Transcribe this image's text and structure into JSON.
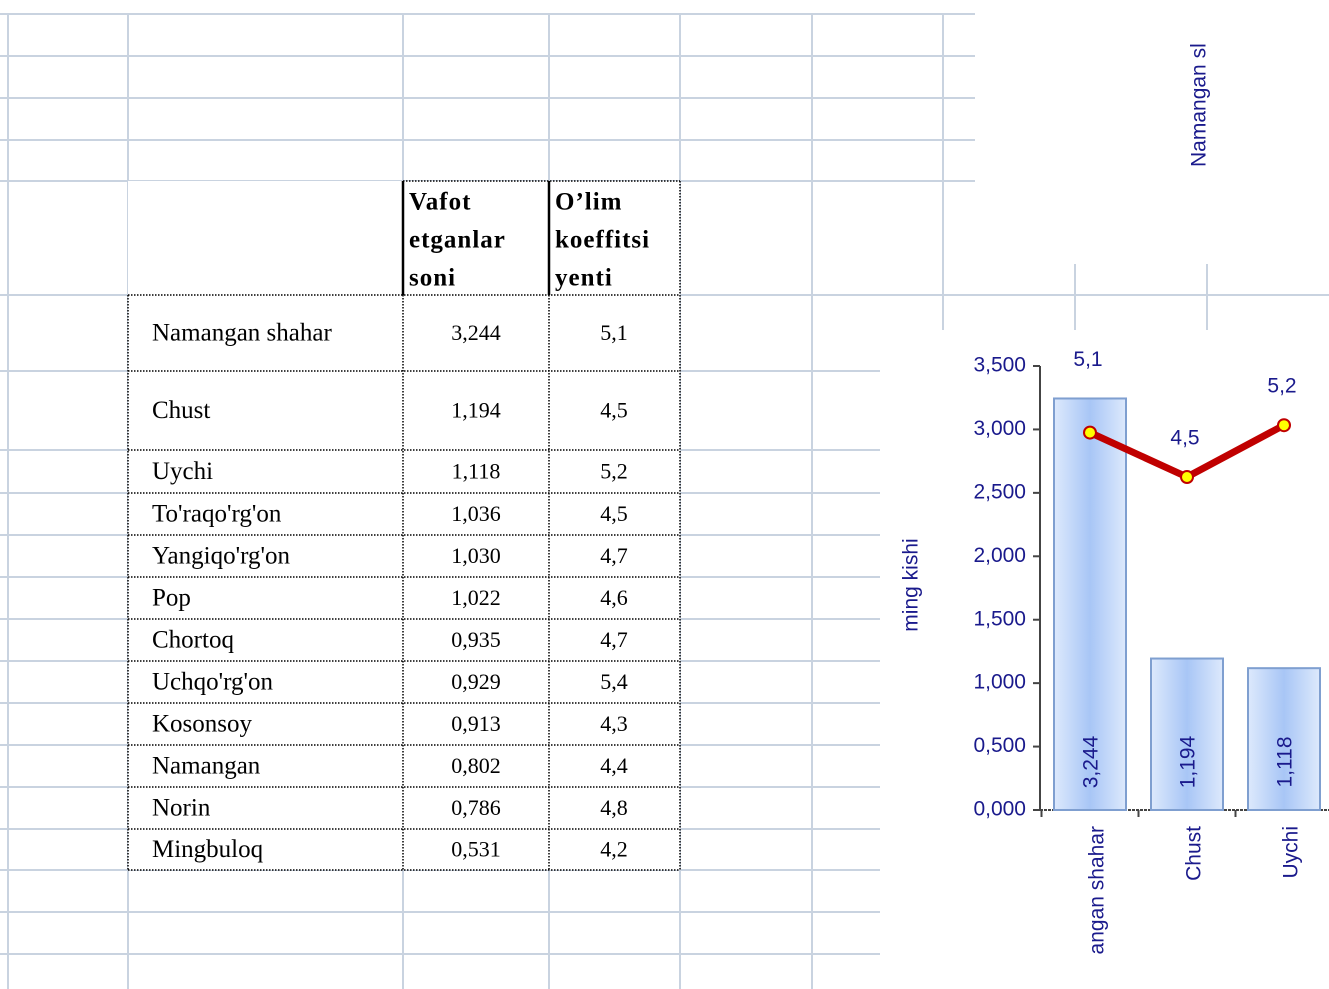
{
  "table": {
    "headers": [
      [
        "Vafot",
        "etganlar",
        "soni"
      ],
      [
        "O’lim",
        "koeffitsi",
        "yenti"
      ]
    ],
    "rows": [
      [
        "Namangan shahar",
        "3,244",
        "5,1"
      ],
      [
        "Chust",
        "1,194",
        "4,5"
      ],
      [
        "Uychi",
        "1,118",
        "5,2"
      ],
      [
        "To'raqo'rg'on",
        "1,036",
        "4,5"
      ],
      [
        "Yangiqo'rg'on",
        "1,030",
        "4,7"
      ],
      [
        "Pop",
        "1,022",
        "4,6"
      ],
      [
        "Chortoq",
        "0,935",
        "4,7"
      ],
      [
        "Uchqo'rg'on",
        "0,929",
        "5,4"
      ],
      [
        "Kosonsoy",
        "0,913",
        "4,3"
      ],
      [
        "Namangan",
        "0,802",
        "4,4"
      ],
      [
        "Norin",
        "0,786",
        "4,8"
      ],
      [
        "Mingbuloq",
        "0,531",
        "4,2"
      ]
    ]
  },
  "top_chart_label": "Namangan sl",
  "chart_data": {
    "type": "bar-line",
    "y_label": "ming kishi",
    "categories": [
      "angan shahar",
      "Chust",
      "Uychi"
    ],
    "series": [
      {
        "type": "bar",
        "color": "#a8c6f6",
        "values": [
          3.244,
          1.194,
          1.118
        ],
        "value_labels": [
          "3,244",
          "1,194",
          "1,118"
        ]
      },
      {
        "type": "line",
        "axis": "y2",
        "color": "#c00000",
        "values": [
          5.1,
          4.5,
          5.2
        ],
        "value_labels": [
          "5,1",
          "4,5",
          "5,2"
        ]
      }
    ],
    "ylim": [
      0,
      3.5
    ],
    "yticks": [
      {
        "value": 0,
        "label": "0,000"
      },
      {
        "value": 0.5,
        "label": "0,500"
      },
      {
        "value": 1,
        "label": "1,000"
      },
      {
        "value": 1.5,
        "label": "1,500"
      },
      {
        "value": 2,
        "label": "2,000"
      },
      {
        "value": 2.5,
        "label": "2,500"
      },
      {
        "value": 3,
        "label": "3,000"
      },
      {
        "value": 3.5,
        "label": "3,500"
      }
    ],
    "y2lim": [
      0,
      6
    ]
  }
}
